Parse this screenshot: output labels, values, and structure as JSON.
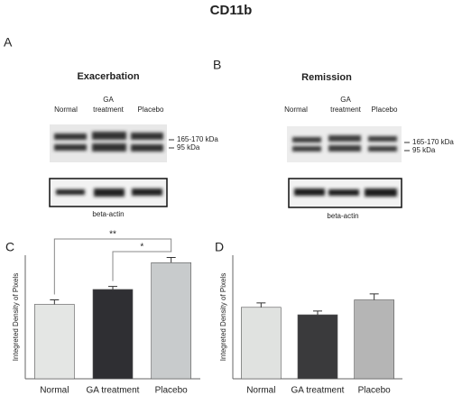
{
  "title": "CD11b",
  "panel_a": {
    "label": "A",
    "heading": "Exacerbation",
    "lanes": [
      "Normal",
      "GA\ntreatment",
      "Placebo"
    ],
    "bands": [
      "165-170 kDa",
      "95 kDa"
    ],
    "loading": "beta-actin"
  },
  "panel_b": {
    "label": "B",
    "heading": "Remission",
    "lanes": [
      "Normal",
      "GA\ntreatment",
      "Placebo"
    ],
    "bands": [
      "165-170 kDa",
      "95 kDa"
    ],
    "loading": "beta-actin"
  },
  "chart_data": [
    {
      "type": "bar",
      "panel": "C",
      "ylabel": "Integreted Density of Pixels",
      "categories": [
        "Normal",
        "GA treatment",
        "Placebo"
      ],
      "values": [
        5.0,
        6.0,
        7.8
      ],
      "errors": [
        0.3,
        0.2,
        0.35
      ],
      "colors": [
        "#e4e6e4",
        "#2f2f33",
        "#c8cbcc"
      ],
      "ylim": [
        0,
        8.3
      ],
      "significance": [
        {
          "text": "**",
          "between": [
            "Normal",
            "Placebo"
          ]
        },
        {
          "text": "*",
          "between": [
            "GA treatment",
            "Placebo"
          ]
        }
      ]
    },
    {
      "type": "bar",
      "panel": "D",
      "ylabel": "Integreted Density of Pixels",
      "categories": [
        "Normal",
        "GA treatment",
        "Placebo"
      ],
      "values": [
        4.8,
        4.3,
        5.3
      ],
      "errors": [
        0.3,
        0.25,
        0.4
      ],
      "colors": [
        "#e0e2e0",
        "#3a3a3c",
        "#b5b5b5"
      ],
      "ylim": [
        0,
        8.3
      ]
    }
  ]
}
